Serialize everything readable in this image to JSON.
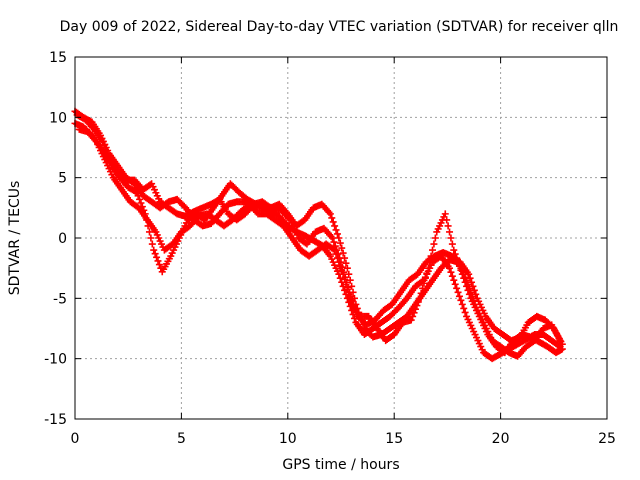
{
  "chart_data": {
    "type": "scatter",
    "title": "Day 009 of 2022, Sidereal Day-to-day VTEC variation (SDTVAR) for receiver qlln",
    "xlabel": "GPS time / hours",
    "ylabel": "SDTVAR / TECUs",
    "xlim": [
      0,
      25
    ],
    "ylim": [
      -15,
      15
    ],
    "xticks": [
      0,
      5,
      10,
      15,
      20,
      25
    ],
    "yticks": [
      -15,
      -10,
      -5,
      0,
      5,
      10,
      15
    ],
    "xtick_labels": [
      "0",
      "5",
      "10",
      "15",
      "20",
      "25"
    ],
    "ytick_labels": [
      "-15",
      "-10",
      "-5",
      "0",
      "5",
      "10",
      "15"
    ],
    "grid": true,
    "marker": "+",
    "color": "#ff0000",
    "series": [
      {
        "name": "sat-track-1",
        "points": [
          [
            0.0,
            10.5
          ],
          [
            0.4,
            10.0
          ],
          [
            0.8,
            9.6
          ],
          [
            1.2,
            8.5
          ],
          [
            1.6,
            7.0
          ],
          [
            2.0,
            6.0
          ],
          [
            2.4,
            5.0
          ],
          [
            2.8,
            4.5
          ],
          [
            3.2,
            3.5
          ],
          [
            3.6,
            3.0
          ],
          [
            4.0,
            2.5
          ],
          [
            4.4,
            3.0
          ],
          [
            4.8,
            3.2
          ],
          [
            5.2,
            2.5
          ],
          [
            5.6,
            1.5
          ],
          [
            6.0,
            1.0
          ],
          [
            6.4,
            1.2
          ],
          [
            6.8,
            2.0
          ],
          [
            7.2,
            2.8
          ],
          [
            7.6,
            3.0
          ],
          [
            8.0,
            3.0
          ],
          [
            8.4,
            2.6
          ],
          [
            8.8,
            2.5
          ],
          [
            9.2,
            2.2
          ],
          [
            9.6,
            1.8
          ],
          [
            10.0,
            1.0
          ],
          [
            10.4,
            0.5
          ],
          [
            10.8,
            0.2
          ],
          [
            11.2,
            -0.2
          ],
          [
            11.6,
            -0.6
          ],
          [
            12.0,
            -1.5
          ],
          [
            12.4,
            -3.0
          ],
          [
            12.8,
            -5.0
          ],
          [
            13.2,
            -7.0
          ],
          [
            13.6,
            -8.0
          ],
          [
            14.0,
            -7.5
          ],
          [
            14.4,
            -7.0
          ],
          [
            14.8,
            -6.5
          ],
          [
            15.2,
            -5.8
          ],
          [
            15.6,
            -5.0
          ],
          [
            16.0,
            -4.0
          ],
          [
            16.4,
            -3.5
          ],
          [
            16.8,
            -2.0
          ],
          [
            17.2,
            -1.5
          ],
          [
            17.6,
            -2.5
          ],
          [
            18.0,
            -4.5
          ],
          [
            18.4,
            -6.5
          ],
          [
            18.8,
            -8.0
          ],
          [
            19.2,
            -9.5
          ],
          [
            19.6,
            -10.0
          ],
          [
            20.0,
            -9.6
          ],
          [
            20.4,
            -9.2
          ],
          [
            20.8,
            -8.8
          ],
          [
            21.2,
            -8.4
          ],
          [
            21.6,
            -8.0
          ],
          [
            22.0,
            -8.0
          ],
          [
            22.4,
            -8.5
          ],
          [
            22.8,
            -9.0
          ]
        ]
      },
      {
        "name": "sat-track-2",
        "points": [
          [
            0.0,
            9.5
          ],
          [
            0.4,
            9.2
          ],
          [
            0.8,
            8.5
          ],
          [
            1.2,
            7.5
          ],
          [
            1.6,
            6.5
          ],
          [
            2.0,
            5.5
          ],
          [
            2.4,
            4.8
          ],
          [
            2.8,
            4.8
          ],
          [
            3.2,
            4.0
          ],
          [
            3.6,
            4.5
          ],
          [
            4.0,
            3.0
          ],
          [
            4.4,
            2.5
          ],
          [
            4.8,
            2.0
          ],
          [
            5.2,
            1.8
          ],
          [
            5.6,
            2.2
          ],
          [
            6.0,
            2.5
          ],
          [
            6.4,
            2.8
          ],
          [
            6.8,
            3.2
          ],
          [
            7.2,
            2.0
          ],
          [
            7.6,
            1.5
          ],
          [
            8.0,
            2.0
          ],
          [
            8.4,
            2.8
          ],
          [
            8.8,
            3.0
          ],
          [
            9.2,
            2.5
          ],
          [
            9.6,
            2.8
          ],
          [
            10.0,
            2.0
          ],
          [
            10.4,
            1.0
          ],
          [
            10.8,
            1.5
          ],
          [
            11.2,
            2.5
          ],
          [
            11.6,
            2.8
          ],
          [
            12.0,
            2.0
          ],
          [
            12.4,
            0.0
          ],
          [
            12.8,
            -2.5
          ],
          [
            13.2,
            -5.5
          ],
          [
            13.6,
            -7.5
          ],
          [
            14.0,
            -8.2
          ],
          [
            14.4,
            -8.0
          ],
          [
            14.8,
            -7.5
          ],
          [
            15.2,
            -7.0
          ],
          [
            15.6,
            -6.5
          ],
          [
            16.0,
            -5.5
          ],
          [
            16.4,
            -4.5
          ],
          [
            16.8,
            -3.5
          ],
          [
            17.2,
            -2.5
          ],
          [
            17.6,
            -1.8
          ],
          [
            18.0,
            -2.0
          ],
          [
            18.4,
            -3.5
          ],
          [
            18.8,
            -5.5
          ],
          [
            19.2,
            -7.0
          ],
          [
            19.6,
            -8.5
          ],
          [
            20.0,
            -9.0
          ],
          [
            20.4,
            -9.5
          ],
          [
            20.8,
            -9.8
          ],
          [
            21.2,
            -9.0
          ],
          [
            21.6,
            -8.5
          ],
          [
            22.0,
            -7.5
          ],
          [
            22.4,
            -7.2
          ],
          [
            22.8,
            -8.5
          ]
        ]
      },
      {
        "name": "sat-track-3",
        "points": [
          [
            0.2,
            9.0
          ],
          [
            0.6,
            8.8
          ],
          [
            1.0,
            8.0
          ],
          [
            1.4,
            6.5
          ],
          [
            1.8,
            5.0
          ],
          [
            2.2,
            4.0
          ],
          [
            2.6,
            3.0
          ],
          [
            3.0,
            2.5
          ],
          [
            3.4,
            1.5
          ],
          [
            3.8,
            0.5
          ],
          [
            4.2,
            -1.0
          ],
          [
            4.6,
            -0.5
          ],
          [
            5.0,
            0.5
          ],
          [
            5.4,
            1.0
          ],
          [
            5.8,
            1.8
          ],
          [
            6.2,
            2.0
          ],
          [
            6.6,
            1.5
          ],
          [
            7.0,
            1.0
          ],
          [
            7.4,
            1.5
          ],
          [
            7.8,
            2.2
          ],
          [
            8.2,
            2.8
          ],
          [
            8.6,
            2.0
          ],
          [
            9.0,
            2.0
          ],
          [
            9.4,
            1.5
          ],
          [
            9.8,
            1.0
          ],
          [
            10.2,
            0.0
          ],
          [
            10.6,
            -1.0
          ],
          [
            11.0,
            -1.5
          ],
          [
            11.4,
            -1.0
          ],
          [
            11.8,
            -0.5
          ],
          [
            12.2,
            -1.0
          ],
          [
            12.6,
            -3.0
          ],
          [
            13.0,
            -5.5
          ],
          [
            13.4,
            -6.5
          ],
          [
            13.8,
            -6.5
          ],
          [
            14.2,
            -7.5
          ],
          [
            14.6,
            -8.5
          ],
          [
            15.0,
            -8.0
          ],
          [
            15.4,
            -7.0
          ],
          [
            15.8,
            -6.8
          ],
          [
            16.2,
            -5.0
          ],
          [
            16.6,
            -2.5
          ],
          [
            17.0,
            0.5
          ],
          [
            17.4,
            2.0
          ],
          [
            17.8,
            -1.0
          ],
          [
            18.2,
            -3.0
          ],
          [
            18.6,
            -5.0
          ],
          [
            19.0,
            -6.5
          ],
          [
            19.4,
            -8.0
          ],
          [
            19.8,
            -9.0
          ],
          [
            20.2,
            -9.5
          ],
          [
            20.6,
            -8.5
          ],
          [
            21.0,
            -8.0
          ],
          [
            21.4,
            -8.2
          ],
          [
            21.8,
            -8.6
          ],
          [
            22.2,
            -9.0
          ],
          [
            22.6,
            -9.5
          ],
          [
            22.9,
            -9.2
          ]
        ]
      },
      {
        "name": "sat-track-4",
        "points": [
          [
            0.1,
            10.2
          ],
          [
            0.5,
            9.8
          ],
          [
            0.9,
            9.0
          ],
          [
            1.3,
            8.0
          ],
          [
            1.7,
            6.0
          ],
          [
            2.1,
            5.0
          ],
          [
            2.5,
            4.2
          ],
          [
            2.9,
            3.8
          ],
          [
            3.3,
            2.0
          ],
          [
            3.7,
            -1.0
          ],
          [
            4.1,
            -2.8
          ],
          [
            4.5,
            -1.5
          ],
          [
            4.9,
            0.0
          ],
          [
            5.3,
            1.5
          ],
          [
            5.7,
            2.0
          ],
          [
            6.1,
            1.5
          ],
          [
            6.5,
            2.5
          ],
          [
            6.9,
            3.5
          ],
          [
            7.3,
            4.5
          ],
          [
            7.7,
            3.8
          ],
          [
            8.1,
            3.2
          ],
          [
            8.5,
            2.8
          ],
          [
            8.9,
            2.6
          ],
          [
            9.3,
            2.5
          ],
          [
            9.7,
            2.3
          ],
          [
            10.1,
            1.5
          ],
          [
            10.5,
            0.0
          ],
          [
            10.9,
            -0.5
          ],
          [
            11.3,
            0.5
          ],
          [
            11.7,
            0.8
          ],
          [
            12.1,
            0.0
          ],
          [
            12.5,
            -2.0
          ],
          [
            12.9,
            -4.5
          ],
          [
            13.3,
            -6.5
          ],
          [
            13.7,
            -7.2
          ],
          [
            14.1,
            -6.8
          ],
          [
            14.5,
            -6.0
          ],
          [
            14.9,
            -5.5
          ],
          [
            15.3,
            -4.5
          ],
          [
            15.7,
            -3.5
          ],
          [
            16.1,
            -3.0
          ],
          [
            16.5,
            -2.0
          ],
          [
            16.9,
            -1.5
          ],
          [
            17.3,
            -1.2
          ],
          [
            17.7,
            -1.5
          ],
          [
            18.1,
            -2.0
          ],
          [
            18.5,
            -3.0
          ],
          [
            18.9,
            -5.0
          ],
          [
            19.3,
            -6.5
          ],
          [
            19.7,
            -7.5
          ],
          [
            20.1,
            -8.0
          ],
          [
            20.5,
            -8.5
          ],
          [
            20.9,
            -8.3
          ],
          [
            21.3,
            -7.0
          ],
          [
            21.7,
            -6.5
          ],
          [
            22.1,
            -6.8
          ],
          [
            22.5,
            -7.5
          ],
          [
            22.9,
            -8.8
          ]
        ]
      }
    ]
  }
}
